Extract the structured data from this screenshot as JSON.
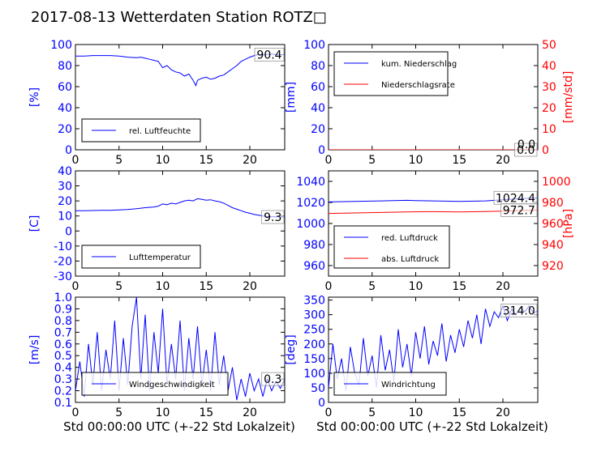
{
  "title": "2017-08-13 Wetterdaten Station ROTZ□",
  "xlabel": "Std 00:00:00 UTC (+-22 Std Lokalzeit)",
  "colors": {
    "primary": "#0000ff",
    "secondary": "#ff0000"
  },
  "chart_data": [
    {
      "name": "humidity",
      "type": "line",
      "xlim": [
        0,
        24
      ],
      "ylim": [
        0,
        100
      ],
      "xticks": [
        0,
        5,
        10,
        15,
        20
      ],
      "yticks": [
        0,
        20,
        40,
        60,
        80,
        100
      ],
      "ylabel": "[%]",
      "legend": {
        "position": "lower-left",
        "entries": [
          "rel. Luftfeuchte"
        ]
      },
      "last_value_label": "90.4",
      "series": [
        {
          "name": "rel. Luftfeuchte",
          "axis": "left",
          "color": "#0000ff",
          "x": [
            0,
            1,
            2,
            3,
            4,
            5,
            6,
            7,
            7.5,
            8,
            8.5,
            9,
            9.5,
            10,
            10.5,
            11,
            11.5,
            12,
            12.5,
            13,
            13.5,
            13.8,
            14,
            14.5,
            15,
            15.5,
            16,
            16.5,
            17,
            17.5,
            18,
            18.5,
            19,
            19.5,
            20,
            20.5,
            21,
            21.5,
            22,
            22.5,
            23,
            23.5,
            24
          ],
          "y": [
            89,
            89,
            89.5,
            89.5,
            89.5,
            89,
            88,
            87.5,
            88,
            87,
            86,
            85,
            84,
            78,
            80,
            76,
            74,
            73,
            70,
            72,
            66,
            61,
            66,
            68,
            69,
            67,
            68,
            70,
            71,
            74,
            77,
            80,
            84,
            86,
            88,
            89.5,
            90.5,
            90,
            90.5,
            91,
            90.5,
            90.4,
            90.4
          ]
        }
      ]
    },
    {
      "name": "precipitation",
      "type": "line",
      "xlim": [
        0,
        24
      ],
      "ylim": [
        0,
        100
      ],
      "ylim_right": [
        0,
        50
      ],
      "xticks": [
        0,
        5,
        10,
        15,
        20
      ],
      "yticks": [
        0,
        20,
        40,
        60,
        80,
        100
      ],
      "yticks_right": [
        0,
        10,
        20,
        30,
        40,
        50
      ],
      "ylabel": "[mm]",
      "ylabel_right": "[mm/std]",
      "legend": {
        "position": "upper-left",
        "entries": [
          "kum. Niederschlag",
          "Niederschlagsrate"
        ]
      },
      "last_value_label": "0.0",
      "last_value_label_right": "0.0",
      "series": [
        {
          "name": "kum. Niederschlag",
          "axis": "left",
          "color": "#0000ff",
          "x": [
            0,
            24
          ],
          "y": [
            0,
            0
          ]
        },
        {
          "name": "Niederschlagsrate",
          "axis": "right",
          "color": "#ff0000",
          "x": [
            0,
            24
          ],
          "y": [
            0,
            0
          ]
        }
      ]
    },
    {
      "name": "temperature",
      "type": "line",
      "xlim": [
        0,
        24
      ],
      "ylim": [
        -30,
        40
      ],
      "xticks": [
        0,
        5,
        10,
        15,
        20
      ],
      "yticks": [
        -30,
        -20,
        -10,
        0,
        10,
        20,
        30,
        40
      ],
      "ylabel": "[C]",
      "legend": {
        "position": "lower-left",
        "entries": [
          "Lufttemperatur"
        ]
      },
      "last_value_label": "9.3",
      "series": [
        {
          "name": "Lufttemperatur",
          "axis": "left",
          "color": "#0000ff",
          "x": [
            0,
            1,
            2,
            3,
            4,
            5,
            6,
            7,
            8,
            9,
            9.5,
            10,
            10.5,
            11,
            11.5,
            12,
            12.5,
            13,
            13.5,
            14,
            14.5,
            15,
            15.5,
            16,
            16.5,
            17,
            17.5,
            18,
            18.5,
            19,
            19.5,
            20,
            20.5,
            21,
            21.5,
            22,
            23,
            24
          ],
          "y": [
            13.5,
            13.5,
            13.6,
            13.7,
            13.8,
            14,
            14.3,
            14.8,
            15.5,
            16,
            16.5,
            18,
            17.5,
            18.5,
            18,
            19,
            20,
            20.5,
            20,
            21.5,
            21,
            20.5,
            20.8,
            20,
            19.5,
            18.5,
            17,
            15.5,
            14.5,
            13.5,
            12.5,
            11.8,
            11,
            10.5,
            10,
            9.6,
            9.4,
            9.3
          ]
        }
      ]
    },
    {
      "name": "pressure",
      "type": "line",
      "xlim": [
        0,
        24
      ],
      "ylim": [
        950,
        1050
      ],
      "ylim_right": [
        910,
        1010
      ],
      "xticks": [
        0,
        5,
        10,
        15,
        20
      ],
      "yticks": [
        960,
        980,
        1000,
        1020,
        1040
      ],
      "yticks_right": [
        920,
        940,
        960,
        980,
        1000
      ],
      "ylabel_right": "[hPa]",
      "legend": {
        "position": "lower-left",
        "entries": [
          "red. Luftdruck",
          "abs. Luftdruck"
        ]
      },
      "last_value_label": "1024.4",
      "last_value_label_right": "972.7",
      "series": [
        {
          "name": "red. Luftdruck",
          "axis": "left",
          "color": "#0000ff",
          "x": [
            0,
            3,
            6,
            9,
            10,
            12,
            15,
            18,
            20,
            22,
            24
          ],
          "y": [
            1020.5,
            1021,
            1021.5,
            1022,
            1021.8,
            1021.5,
            1021,
            1021.5,
            1022.5,
            1023.5,
            1024.4
          ]
        },
        {
          "name": "abs. Luftdruck",
          "axis": "right",
          "color": "#ff0000",
          "x": [
            0,
            3,
            6,
            9,
            12,
            15,
            18,
            20,
            22,
            24
          ],
          "y": [
            969.5,
            970,
            970.5,
            971,
            971.2,
            971,
            971.3,
            971.8,
            972.3,
            972.7
          ]
        }
      ]
    },
    {
      "name": "windspeed",
      "type": "line",
      "xlim": [
        0,
        24
      ],
      "ylim": [
        0.1,
        1.0
      ],
      "xticks": [
        0,
        5,
        10,
        15,
        20
      ],
      "yticks": [
        0.1,
        0.2,
        0.3,
        0.4,
        0.5,
        0.6,
        0.7,
        0.8,
        0.9,
        1.0
      ],
      "ylabel": "[m/s]",
      "legend": {
        "position": "lower-left",
        "entries": [
          "Windgeschwindigkeit"
        ]
      },
      "last_value_label": "0.3",
      "series": [
        {
          "name": "Windgeschwindigkeit",
          "axis": "left",
          "color": "#0000ff",
          "x": [
            0,
            0.5,
            1,
            1.5,
            2,
            2.5,
            3,
            3.5,
            4,
            4.5,
            5,
            5.5,
            6,
            6.5,
            7,
            7.5,
            8,
            8.5,
            9,
            9.5,
            10,
            10.5,
            11,
            11.5,
            12,
            12.5,
            13,
            13.5,
            14,
            14.5,
            15,
            15.5,
            16,
            16.5,
            17,
            17.5,
            18,
            18.5,
            19,
            19.5,
            20,
            20.5,
            21,
            21.5,
            22,
            22.5,
            23,
            23.5,
            24
          ],
          "y": [
            0.2,
            0.45,
            0.15,
            0.6,
            0.25,
            0.7,
            0.2,
            0.55,
            0.3,
            0.8,
            0.2,
            0.65,
            0.25,
            0.75,
            1.0,
            0.3,
            0.85,
            0.2,
            0.7,
            0.35,
            0.9,
            0.25,
            0.6,
            0.3,
            0.8,
            0.2,
            0.65,
            0.3,
            0.75,
            0.25,
            0.55,
            0.2,
            0.7,
            0.25,
            0.5,
            0.2,
            0.4,
            0.12,
            0.3,
            0.15,
            0.35,
            0.2,
            0.3,
            0.15,
            0.3,
            0.2,
            0.28,
            0.22,
            0.3
          ]
        }
      ]
    },
    {
      "name": "winddirection",
      "type": "line",
      "xlim": [
        0,
        24
      ],
      "ylim": [
        0,
        360
      ],
      "xticks": [
        0,
        5,
        10,
        15,
        20
      ],
      "yticks": [
        0,
        50,
        100,
        150,
        200,
        250,
        300,
        350
      ],
      "ylabel": "[deg]",
      "legend": {
        "position": "lower-left",
        "entries": [
          "Windrichtung"
        ]
      },
      "last_value_label": "314.0",
      "series": [
        {
          "name": "Windrichtung",
          "axis": "left",
          "color": "#0000ff",
          "x": [
            0,
            0.5,
            1,
            1.5,
            2,
            2.5,
            3,
            3.5,
            4,
            4.5,
            5,
            5.5,
            6,
            6.5,
            7,
            7.5,
            8,
            8.5,
            9,
            9.5,
            10,
            10.5,
            11,
            11.5,
            12,
            12.5,
            13,
            13.5,
            14,
            14.5,
            15,
            15.5,
            16,
            16.5,
            17,
            17.5,
            18,
            18.5,
            19,
            19.5,
            20,
            20.5,
            21,
            21.5,
            22,
            22.5,
            23,
            23.5,
            24
          ],
          "y": [
            50,
            200,
            80,
            150,
            40,
            190,
            100,
            60,
            220,
            90,
            160,
            50,
            230,
            110,
            180,
            70,
            250,
            120,
            200,
            90,
            240,
            150,
            260,
            130,
            210,
            160,
            270,
            140,
            230,
            170,
            250,
            190,
            280,
            220,
            300,
            200,
            320,
            260,
            310,
            290,
            330,
            280,
            320,
            300,
            325,
            310,
            330,
            305,
            314
          ]
        }
      ]
    }
  ]
}
